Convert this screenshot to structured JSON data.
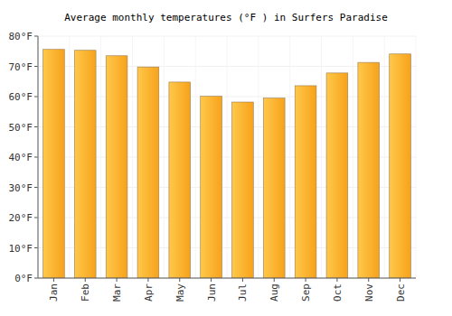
{
  "chart_data": {
    "type": "bar",
    "title": "Average monthly temperatures (°F ) in Surfers Paradise",
    "categories": [
      "Jan",
      "Feb",
      "Mar",
      "Apr",
      "May",
      "Jun",
      "Jul",
      "Aug",
      "Sep",
      "Oct",
      "Nov",
      "Dec"
    ],
    "values": [
      75.6,
      75.3,
      73.5,
      69.8,
      64.8,
      60.1,
      58.2,
      59.5,
      63.6,
      67.8,
      71.3,
      74.1
    ],
    "color": "#f7a21b",
    "ylim": [
      0,
      80
    ],
    "yticks": [
      {
        "value": 0,
        "label": "0°F"
      },
      {
        "value": 10,
        "label": "10°F"
      },
      {
        "value": 20,
        "label": "20°F"
      },
      {
        "value": 30,
        "label": "30°F"
      },
      {
        "value": 40,
        "label": "40°F"
      },
      {
        "value": 50,
        "label": "50°F"
      },
      {
        "value": 60,
        "label": "60°F"
      },
      {
        "value": 70,
        "label": "70°F"
      },
      {
        "value": 80,
        "label": "80°F"
      }
    ],
    "grid": true
  }
}
